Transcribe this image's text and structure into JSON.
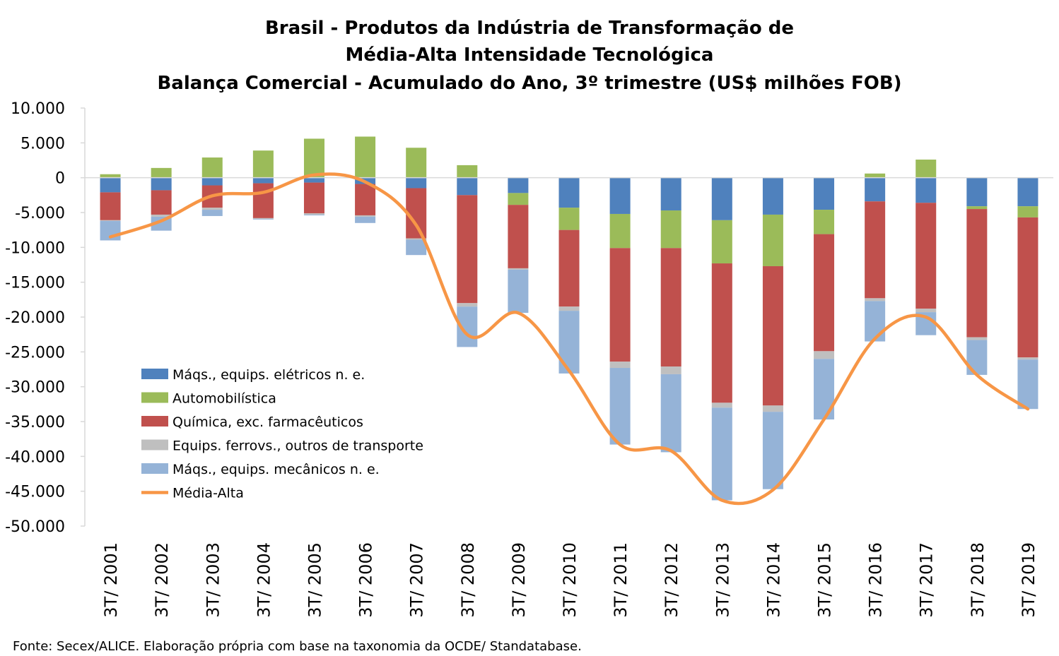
{
  "chart_data": {
    "type": "bar",
    "stacked": true,
    "title_lines": [
      "Brasil - Produtos da Indústria de Transformação de",
      "Média-Alta Intensidade Tecnológica",
      "Balança Comercial - Acumulado do Ano, 3º trimestre (US$ milhões FOB)"
    ],
    "source": "Fonte: Secex/ALICE. Elaboração própria com base na taxonomia da OCDE/ Standatabase.",
    "ylim": [
      -50000,
      10000
    ],
    "yticks": [
      10000,
      5000,
      0,
      -5000,
      -10000,
      -15000,
      -20000,
      -25000,
      -30000,
      -35000,
      -40000,
      -45000,
      -50000
    ],
    "ytick_labels": [
      "10.000",
      "5.000",
      "0",
      "-5.000",
      "-10.000",
      "-15.000",
      "-20.000",
      "-25.000",
      "-30.000",
      "-35.000",
      "-40.000",
      "-45.000",
      "-50.000"
    ],
    "categories": [
      "3T/ 2001",
      "3T/ 2002",
      "3T/ 2003",
      "3T/ 2004",
      "3T/ 2005",
      "3T/ 2006",
      "3T/ 2007",
      "3T/ 2008",
      "3T/ 2009",
      "3T/ 2010",
      "3T/ 2011",
      "3T/ 2012",
      "3T/ 2013",
      "3T/ 2014",
      "3T/ 2015",
      "3T/ 2016",
      "3T/ 2017",
      "3T/ 2018",
      "3T/ 2019"
    ],
    "grid": false,
    "legend_position": "lower-left inside plot",
    "series": [
      {
        "name": "Máqs., equips. elétricos n. e.",
        "color": "#4f81bd",
        "values": [
          -2100,
          -1800,
          -1100,
          -800,
          -700,
          -900,
          -1500,
          -2500,
          -2200,
          -4300,
          -5200,
          -4700,
          -6100,
          -5300,
          -4600,
          -3400,
          -3600,
          -4100,
          -4100
        ]
      },
      {
        "name": "Automobilística",
        "color": "#9bbb59",
        "values": [
          500,
          1400,
          2900,
          3900,
          5600,
          5900,
          4300,
          1800,
          -1700,
          -3200,
          -4900,
          -5400,
          -6200,
          -7400,
          -3500,
          600,
          2600,
          -400,
          -1600
        ]
      },
      {
        "name": "Química, exc. farmacêuticos",
        "color": "#c0504d",
        "values": [
          -4000,
          -3500,
          -3200,
          -5000,
          -4400,
          -4500,
          -7200,
          -15500,
          -9100,
          -11000,
          -16300,
          -17000,
          -20000,
          -20000,
          -16800,
          -13900,
          -15200,
          -18400,
          -20100
        ]
      },
      {
        "name": "Equips. ferrovs., outros de transporte",
        "color": "#bfbfbf",
        "values": [
          -100,
          -300,
          -300,
          -100,
          -200,
          -200,
          -200,
          -500,
          -200,
          -600,
          -900,
          -1100,
          -700,
          -900,
          -1100,
          -400,
          -500,
          -400,
          -300
        ]
      },
      {
        "name": "Máqs., equips. mecânicos  n. e.",
        "color": "#95b3d7",
        "values": [
          -2800,
          -2000,
          -900,
          -100,
          -100,
          -900,
          -2200,
          -5800,
          -6200,
          -9000,
          -11000,
          -11200,
          -13300,
          -11100,
          -8700,
          -5800,
          -3300,
          -5000,
          -7100
        ]
      }
    ],
    "line": {
      "name": "Média-Alta",
      "color": "#f79646",
      "values": [
        -8500,
        -6200,
        -2600,
        -2100,
        400,
        -600,
        -6800,
        -22500,
        -19400,
        -27700,
        -38300,
        -39200,
        -46300,
        -44800,
        -34700,
        -23100,
        -20000,
        -28300,
        -33200
      ]
    }
  }
}
